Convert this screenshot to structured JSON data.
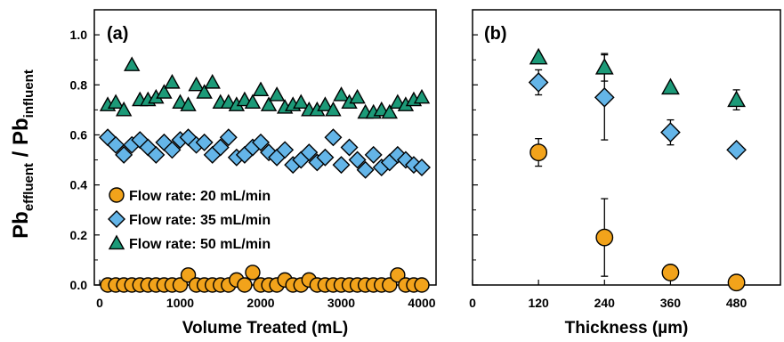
{
  "colors": {
    "flow_20": "#f2a31b",
    "flow_35": "#64b5e8",
    "flow_50": "#1c9a78",
    "marker_edge": "#000000"
  },
  "y_axis_label": {
    "main1": "Pb",
    "sub1": "effluent",
    "main2": " / Pb",
    "sub2": "influent"
  },
  "chart_data": [
    {
      "type": "scatter",
      "panel_label": "(a)",
      "xlabel": "Volume Treated (mL)",
      "ylabel": "Pb effluent / Pb influent",
      "xlim": [
        0,
        4000
      ],
      "ylim": [
        0,
        1.1
      ],
      "x_ticks": [
        "0",
        "1000",
        "2000",
        "3000",
        "4000"
      ],
      "y_ticks": [
        "0.0",
        "0.2",
        "0.4",
        "0.6",
        "0.8",
        "1.0"
      ],
      "legend_position": "bottom-left",
      "series": [
        {
          "name": "Flow rate: 20 mL/min",
          "marker": "circle",
          "color": "#f2a31b",
          "x": [
            100,
            200,
            300,
            400,
            500,
            600,
            700,
            800,
            900,
            1000,
            1100,
            1200,
            1300,
            1400,
            1500,
            1600,
            1700,
            1800,
            1900,
            2000,
            2100,
            2200,
            2300,
            2400,
            2500,
            2600,
            2700,
            2800,
            2900,
            3000,
            3100,
            3200,
            3300,
            3400,
            3500,
            3600,
            3700,
            3800,
            3900,
            4000
          ],
          "y": [
            0.0,
            0.0,
            0.0,
            0.0,
            0.0,
            0.0,
            0.0,
            0.0,
            0.0,
            0.0,
            0.04,
            0.0,
            0.0,
            0.0,
            0.0,
            0.0,
            0.02,
            0.0,
            0.05,
            0.0,
            0.0,
            0.0,
            0.02,
            0.0,
            0.0,
            0.02,
            0.0,
            0.0,
            0.0,
            0.0,
            0.0,
            0.0,
            0.0,
            0.0,
            0.0,
            0.0,
            0.04,
            0.0,
            0.0,
            0.0
          ]
        },
        {
          "name": "Flow rate: 35 mL/min",
          "marker": "diamond",
          "color": "#64b5e8",
          "x": [
            100,
            200,
            300,
            400,
            500,
            600,
            700,
            800,
            900,
            1000,
            1100,
            1200,
            1300,
            1400,
            1500,
            1600,
            1700,
            1800,
            1900,
            2000,
            2100,
            2200,
            2300,
            2400,
            2500,
            2600,
            2700,
            2800,
            2900,
            3000,
            3100,
            3200,
            3300,
            3400,
            3500,
            3600,
            3700,
            3800,
            3900,
            4000
          ],
          "y": [
            0.59,
            0.56,
            0.52,
            0.56,
            0.58,
            0.55,
            0.52,
            0.57,
            0.54,
            0.58,
            0.59,
            0.56,
            0.57,
            0.52,
            0.55,
            0.59,
            0.51,
            0.52,
            0.55,
            0.57,
            0.53,
            0.51,
            0.54,
            0.48,
            0.5,
            0.53,
            0.49,
            0.51,
            0.59,
            0.48,
            0.55,
            0.5,
            0.46,
            0.52,
            0.47,
            0.49,
            0.52,
            0.5,
            0.48,
            0.47
          ]
        },
        {
          "name": "Flow rate: 50 mL/min",
          "marker": "triangle",
          "color": "#1c9a78",
          "x": [
            100,
            200,
            300,
            400,
            500,
            600,
            700,
            800,
            900,
            1000,
            1100,
            1200,
            1300,
            1400,
            1500,
            1600,
            1700,
            1800,
            1900,
            2000,
            2100,
            2200,
            2300,
            2400,
            2500,
            2600,
            2700,
            2800,
            2900,
            3000,
            3100,
            3200,
            3300,
            3400,
            3500,
            3600,
            3700,
            3800,
            3900,
            4000
          ],
          "y": [
            0.72,
            0.73,
            0.7,
            0.88,
            0.74,
            0.74,
            0.75,
            0.77,
            0.81,
            0.73,
            0.72,
            0.8,
            0.77,
            0.81,
            0.73,
            0.73,
            0.72,
            0.74,
            0.73,
            0.78,
            0.72,
            0.76,
            0.71,
            0.72,
            0.73,
            0.7,
            0.7,
            0.72,
            0.7,
            0.76,
            0.73,
            0.75,
            0.69,
            0.69,
            0.7,
            0.69,
            0.73,
            0.72,
            0.74,
            0.75
          ]
        }
      ]
    },
    {
      "type": "scatter",
      "panel_label": "(b)",
      "xlabel": "Thickness (µm)",
      "xlim": [
        0,
        560
      ],
      "ylim": [
        0,
        1.1
      ],
      "x_ticks": [
        "0",
        "120",
        "240",
        "360",
        "480"
      ],
      "series": [
        {
          "name": "Flow rate: 20 mL/min",
          "marker": "circle",
          "color": "#f2a31b",
          "x": [
            120,
            240,
            360,
            480
          ],
          "y": [
            0.53,
            0.19,
            0.05,
            0.01
          ],
          "error": [
            0.055,
            0.155,
            0.0,
            0.0
          ]
        },
        {
          "name": "Flow rate: 35 mL/min",
          "marker": "diamond",
          "color": "#64b5e8",
          "x": [
            120,
            240,
            360,
            480
          ],
          "y": [
            0.81,
            0.75,
            0.61,
            0.54
          ],
          "error": [
            0.05,
            0.17,
            0.05,
            0.0
          ]
        },
        {
          "name": "Flow rate: 50 mL/min",
          "marker": "triangle",
          "color": "#1c9a78",
          "x": [
            120,
            240,
            360,
            480
          ],
          "y": [
            0.91,
            0.87,
            0.79,
            0.74
          ],
          "error": [
            0.0,
            0.055,
            0.0,
            0.04
          ]
        }
      ]
    }
  ]
}
